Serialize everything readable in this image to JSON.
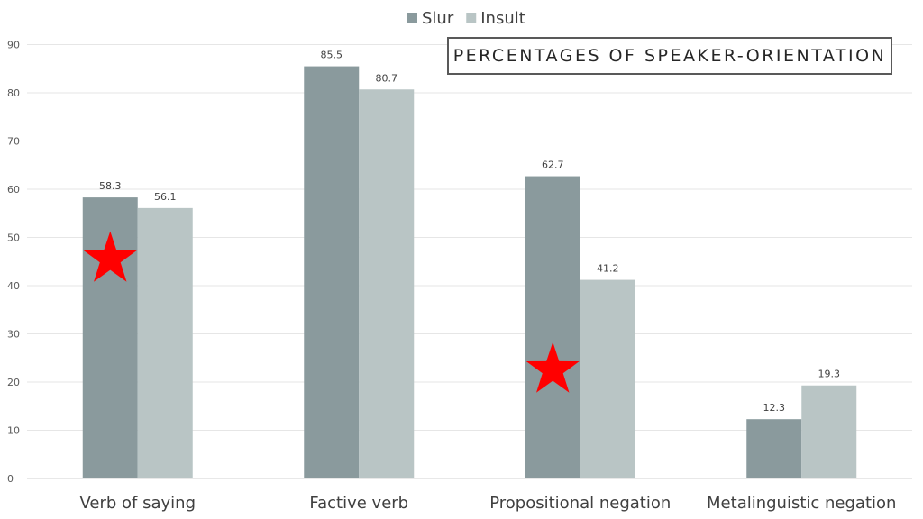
{
  "chart_data": {
    "type": "bar",
    "title": "PERCENTAGES OF SPEAKER-ORIENTATION",
    "categories": [
      "Verb of saying",
      "Factive verb",
      "Propositional negation",
      "Metalinguistic negation"
    ],
    "series": [
      {
        "name": "Slur",
        "values": [
          58.3,
          85.5,
          62.7,
          12.3
        ],
        "color": "#8a9a9d"
      },
      {
        "name": "Insult",
        "values": [
          56.1,
          80.7,
          41.2,
          19.3
        ],
        "color": "#b9c5c5"
      }
    ],
    "data_labels": {
      "Slur": [
        "58.3",
        "85.5",
        "62.7",
        "12.3"
      ],
      "Insult": [
        "56.1",
        "80.7",
        "41.2",
        "19.3"
      ]
    },
    "yticks": [
      "0",
      "10",
      "20",
      "30",
      "40",
      "50",
      "60",
      "70",
      "80",
      "90"
    ],
    "ylim": [
      0,
      90
    ],
    "grid": true,
    "legend": "top-center",
    "annotations": [
      {
        "shape": "star",
        "color": "#ff0000",
        "category": "Verb of saying",
        "series": "Slur",
        "y": 45.5
      },
      {
        "shape": "star",
        "color": "#ff0000",
        "category": "Propositional negation",
        "series": "Slur",
        "y": 22.5
      }
    ]
  }
}
